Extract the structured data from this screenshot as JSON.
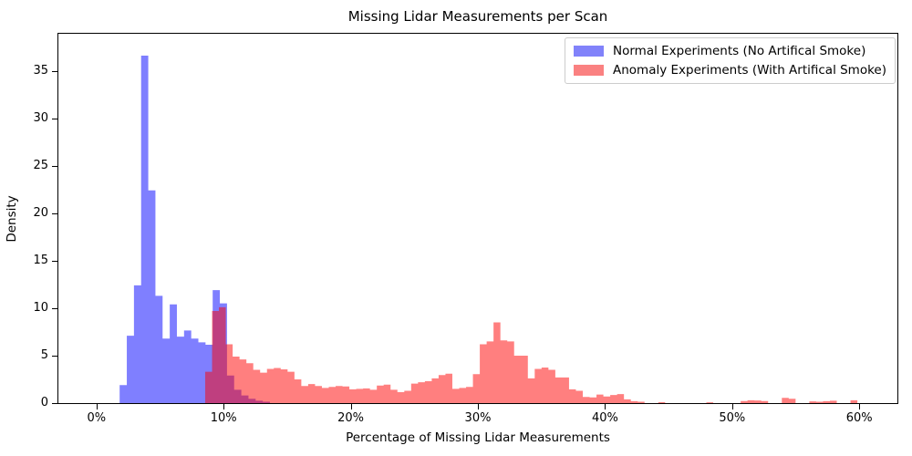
{
  "chart_data": {
    "type": "bar",
    "subtype": "overlaid-histograms",
    "title": "Missing Lidar Measurements per Scan",
    "xlabel": "Percentage of Missing Lidar Measurements",
    "ylabel": "Density",
    "xlim_percent": [
      -3,
      63
    ],
    "ylim": [
      0,
      38.9
    ],
    "grid": false,
    "x_ticks": [
      {
        "value": 0,
        "label": "0%"
      },
      {
        "value": 10,
        "label": "10%"
      },
      {
        "value": 20,
        "label": "20%"
      },
      {
        "value": 30,
        "label": "30%"
      },
      {
        "value": 40,
        "label": "40%"
      },
      {
        "value": 50,
        "label": "50%"
      },
      {
        "value": 60,
        "label": "60%"
      }
    ],
    "y_ticks": [
      {
        "value": 0,
        "label": "0"
      },
      {
        "value": 5,
        "label": "5"
      },
      {
        "value": 10,
        "label": "10"
      },
      {
        "value": 15,
        "label": "15"
      },
      {
        "value": 20,
        "label": "20"
      },
      {
        "value": 25,
        "label": "25"
      },
      {
        "value": 30,
        "label": "30"
      },
      {
        "value": 35,
        "label": "35"
      }
    ],
    "legend_position": "top-right",
    "series": [
      {
        "name": "Normal Experiments (No Artifical Smoke)",
        "fill_color": "rgba(0,0,255,0.5)",
        "legend_swatch_color": "#8182fa",
        "bin_start_percent": 1.82,
        "bin_width_percent": 0.563,
        "densities": [
          1.9,
          7.1,
          12.4,
          36.6,
          22.4,
          11.3,
          6.8,
          10.4,
          7.0,
          7.65,
          6.8,
          6.4,
          6.15,
          11.9,
          10.5,
          2.9,
          1.4,
          0.8,
          0.45,
          0.25,
          0.15
        ]
      },
      {
        "name": "Anomaly Experiments (With Artifical Smoke)",
        "fill_color": "rgba(255,0,0,0.5)",
        "legend_swatch_color": "#fa8181",
        "bin_start_percent": 8.55,
        "bin_width_percent": 0.54,
        "densities": [
          3.3,
          9.7,
          10.1,
          6.2,
          4.9,
          4.6,
          4.2,
          3.5,
          3.2,
          3.6,
          3.7,
          3.55,
          3.3,
          2.5,
          1.8,
          2.0,
          1.8,
          1.6,
          1.7,
          1.8,
          1.75,
          1.45,
          1.5,
          1.55,
          1.4,
          1.85,
          1.95,
          1.4,
          1.15,
          1.3,
          2.05,
          2.2,
          2.3,
          2.6,
          2.95,
          3.1,
          1.5,
          1.6,
          1.7,
          3.05,
          6.2,
          6.5,
          8.5,
          6.6,
          6.5,
          5.0,
          5.0,
          2.6,
          3.6,
          3.75,
          3.5,
          2.7,
          2.7,
          1.45,
          1.3,
          0.65,
          0.6,
          0.9,
          0.7,
          0.85,
          0.95,
          0.4,
          0.2,
          0.15,
          0,
          0,
          0.1,
          0,
          0,
          0,
          0,
          0,
          0,
          0.08,
          0,
          0,
          0,
          0,
          0.22,
          0.3,
          0.28,
          0.22,
          0,
          0,
          0.55,
          0.45,
          0,
          0,
          0.18,
          0.15,
          0.2,
          0.25,
          0,
          0,
          0.3
        ]
      }
    ]
  }
}
